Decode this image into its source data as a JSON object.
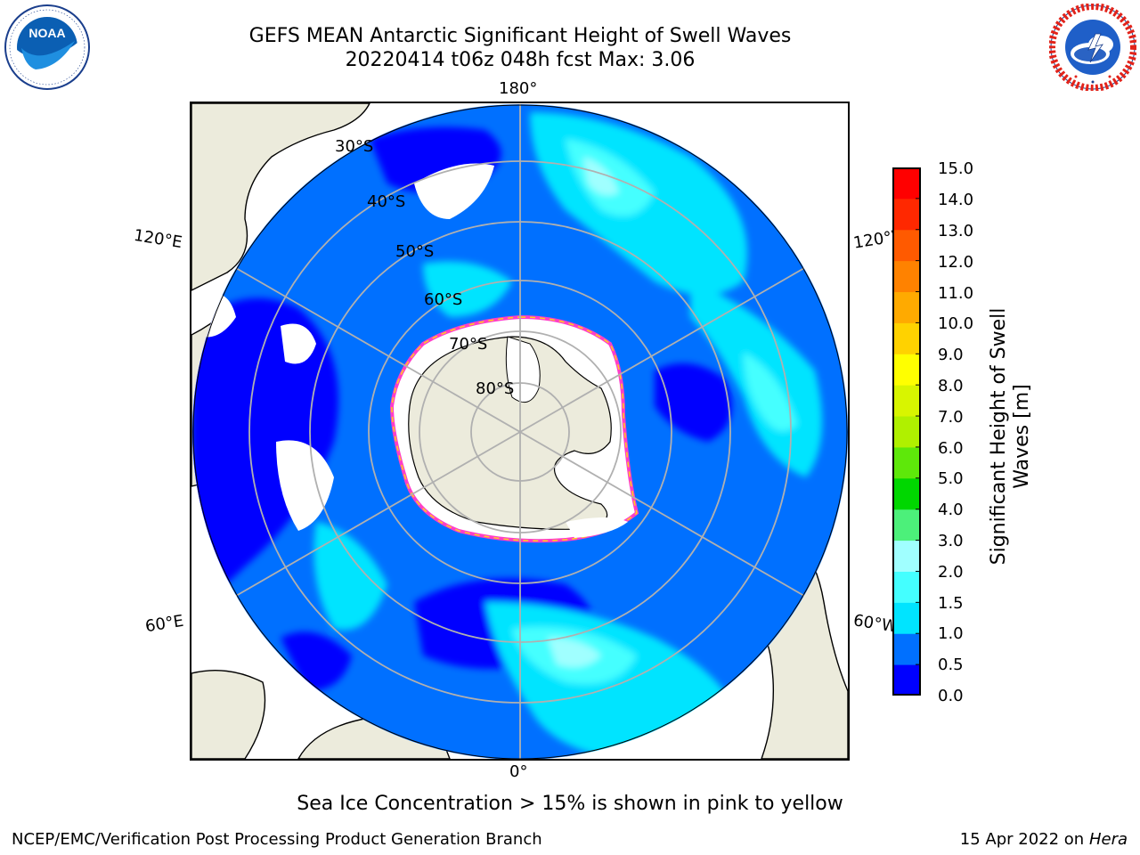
{
  "title": {
    "line1": "GEFS MEAN Antarctic Significant Height of Swell Waves",
    "line2": "20220414 t06z 048h fcst   Max: 3.06"
  },
  "logos": {
    "left": {
      "name": "noaa-logo",
      "text": "NOAA",
      "ring_text": "NATIONAL OCEANIC AND ATMOSPHERIC ADMINISTRATION · U.S. DEPARTMENT OF COMMERCE"
    },
    "right": {
      "name": "nws-logo",
      "ring_text": "NATIONAL WEATHER SERVICE"
    }
  },
  "map": {
    "projection": "south-polar-stereographic",
    "longitude_labels": {
      "top": "180°",
      "bottom": "0°",
      "upper_left": "120°E",
      "lower_left": "60°E",
      "upper_right": "120°W",
      "lower_right": "60°W"
    },
    "latitude_labels": [
      "30°S",
      "40°S",
      "50°S",
      "60°S",
      "70°S",
      "80°S"
    ],
    "colors": {
      "land": "#ecebdc",
      "ice": "#ffffff",
      "grid": "#b0b0b0",
      "ice_edge": [
        "#ff3ec8",
        "#ffd21e"
      ]
    }
  },
  "colorbar": {
    "title_line1": "Significant Height of Swell",
    "title_line2": "Waves [m]",
    "ticks": [
      "15.0",
      "14.0",
      "13.0",
      "12.0",
      "11.0",
      "10.0",
      "9.0",
      "8.0",
      "7.0",
      "6.0",
      "5.0",
      "4.0",
      "3.0",
      "2.0",
      "1.5",
      "1.0",
      "0.5",
      "0.0"
    ],
    "colors_bottom_to_top": [
      "#0000ff",
      "#0070ff",
      "#00e4ff",
      "#44ffff",
      "#a0ffff",
      "#4cf07a",
      "#00d700",
      "#5ee80a",
      "#b0f000",
      "#d8f500",
      "#ffff00",
      "#ffd200",
      "#ffaa00",
      "#ff8200",
      "#ff5a00",
      "#ff2800",
      "#ff0000"
    ]
  },
  "note": "Sea Ice Concentration > 15% is shown in pink to yellow",
  "footer": {
    "left": "NCEP/EMC/Verification Post Processing Product Generation Branch",
    "right_prefix": "15 Apr 2022 on ",
    "right_italic": "Hera"
  }
}
